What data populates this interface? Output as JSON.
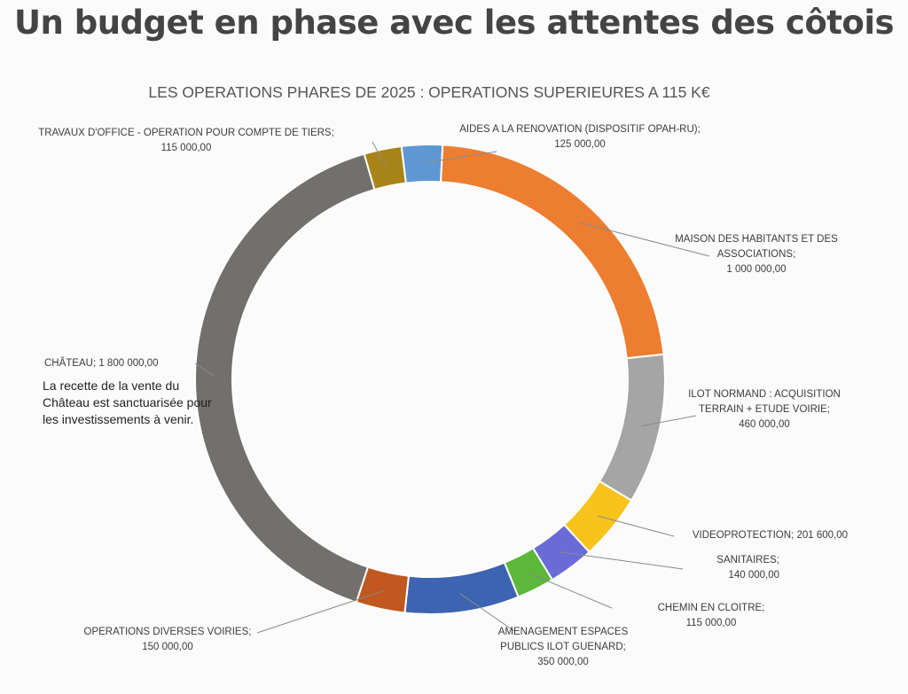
{
  "headline": "Un budget en phase avec les attentes des côtois",
  "note": "La recette de la vente du Château est sanctuarisée pour les investissements à venir.",
  "chart_data": {
    "type": "pie",
    "title": "LES OPERATIONS PHARES DE 2025 : OPERATIONS SUPERIEURES A 115 K€",
    "slices": [
      {
        "name": "AIDES A LA RENOVATION  (DISPOSITIF OPAH-RU)",
        "value": 125000,
        "value_label": "125 000,00",
        "color": "#5f97d3"
      },
      {
        "name": "MAISON DES HABITANTS ET DES ASSOCIATIONS",
        "value": 1000000,
        "value_label": "1 000 000,00",
        "color": "#ed7d31"
      },
      {
        "name": "ILOT NORMAND : ACQUISITION TERRAIN + ETUDE VOIRIE",
        "value": 460000,
        "value_label": "460 000,00",
        "color": "#a5a5a5"
      },
      {
        "name": "VIDEOPROTECTION",
        "value": 201600,
        "value_label": "201 600,00",
        "color": "#f7c31c"
      },
      {
        "name": "SANITAIRES",
        "value": 140000,
        "value_label": "140 000,00",
        "color": "#6a6bd6"
      },
      {
        "name": "CHEMIN EN CLOITRE",
        "value": 115000,
        "value_label": "115 000,00",
        "color": "#5cb73a"
      },
      {
        "name": "AMENAGEMENT ESPACES PUBLICS ILOT GUENARD",
        "value": 350000,
        "value_label": "350 000,00",
        "color": "#3c64b1"
      },
      {
        "name": "OPERATIONS DIVERSES VOIRIES",
        "value": 150000,
        "value_label": "150 000,00",
        "color": "#c0581f"
      },
      {
        "name": "CHÂTEAU",
        "value": 1800000,
        "value_label": "1 800 000,00",
        "color": "#72706d"
      },
      {
        "name": "TRAVAUX D'OFFICE - OPERATION POUR COMPTE DE TIERS",
        "value": 115000,
        "value_label": "115 000,00",
        "color": "#a88418"
      }
    ],
    "labels": [
      {
        "lines": [
          "AIDES A LA RENOVATION  (DISPOSITIF OPAH-RU);",
          "125 000,00"
        ]
      },
      {
        "lines": [
          "MAISON DES HABITANTS ET DES",
          "ASSOCIATIONS;",
          "1 000 000,00"
        ]
      },
      {
        "lines": [
          "ILOT NORMAND : ACQUISITION",
          "TERRAIN + ETUDE VOIRIE;",
          "460 000,00"
        ]
      },
      {
        "lines": [
          "VIDEOPROTECTION;  201 600,00"
        ]
      },
      {
        "lines": [
          "SANITAIRES;",
          "140 000,00"
        ]
      },
      {
        "lines": [
          "CHEMIN EN CLOITRE;",
          "115 000,00"
        ]
      },
      {
        "lines": [
          "AMENAGEMENT ESPACES",
          "PUBLICS ILOT GUENARD;",
          "350 000,00"
        ]
      },
      {
        "lines": [
          "OPERATIONS DIVERSES VOIRIES;",
          "150 000,00"
        ]
      },
      {
        "lines": [
          "CHÂTEAU;  1 800 000,00"
        ]
      },
      {
        "lines": [
          "TRAVAUX D'OFFICE - OPERATION POUR COMPTE DE TIERS;",
          "115 000,00"
        ]
      }
    ]
  }
}
